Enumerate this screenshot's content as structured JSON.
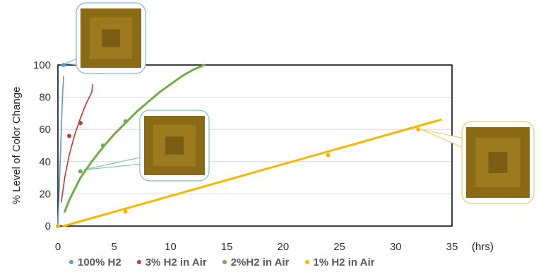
{
  "chart_data": {
    "type": "scatter",
    "ylabel": "% Level of Color Change",
    "x_unit": "(hrs)",
    "xlim": [
      0,
      35
    ],
    "ylim": [
      0,
      100
    ],
    "x_ticks": [
      "0",
      "5",
      "10",
      "15",
      "20",
      "25",
      "30",
      "35"
    ],
    "y_ticks": [
      "0",
      "20",
      "40",
      "60",
      "80",
      "100"
    ],
    "grid": "horizontal",
    "legend_position": "bottom",
    "series": [
      {
        "name": "100% H2",
        "color": "#5B9BD5",
        "points": [
          [
            0,
            0
          ],
          [
            0.5,
            100
          ]
        ],
        "trend": [
          [
            0,
            0
          ],
          [
            0.1,
            20
          ],
          [
            0.2,
            40
          ],
          [
            0.3,
            60
          ],
          [
            0.4,
            80
          ],
          [
            0.5,
            93
          ]
        ]
      },
      {
        "name": "3% H2 in Air",
        "color": "#C0392B",
        "points": [
          [
            1,
            56
          ],
          [
            2,
            64
          ]
        ],
        "trend": [
          [
            0.3,
            15
          ],
          [
            0.6,
            30
          ],
          [
            1,
            44
          ],
          [
            1.5,
            57
          ],
          [
            2,
            67
          ],
          [
            2.5,
            76
          ],
          [
            3,
            83
          ],
          [
            3.1,
            88
          ]
        ]
      },
      {
        "name": "2%H2 in Air",
        "color": "#70AD47",
        "points": [
          [
            2,
            34
          ],
          [
            4,
            50
          ],
          [
            6,
            65
          ]
        ],
        "trend": [
          [
            0.6,
            9
          ],
          [
            1,
            16
          ],
          [
            2,
            30
          ],
          [
            3,
            40
          ],
          [
            4,
            49
          ],
          [
            5,
            57
          ],
          [
            6,
            64
          ],
          [
            7,
            71
          ],
          [
            8,
            77
          ],
          [
            9,
            83
          ],
          [
            10,
            88
          ],
          [
            11,
            93
          ],
          [
            12,
            97
          ],
          [
            13,
            100
          ]
        ]
      },
      {
        "name": "1% H2 in Air",
        "color": "#F5B800",
        "points": [
          [
            0,
            0
          ],
          [
            6,
            9
          ],
          [
            24,
            44
          ],
          [
            32,
            60
          ]
        ],
        "trend": [
          [
            0.5,
            0
          ],
          [
            34,
            66
          ]
        ]
      }
    ],
    "callout_images": [
      "sample-photo-100pct",
      "sample-photo-2pct",
      "sample-photo-1pct"
    ]
  }
}
